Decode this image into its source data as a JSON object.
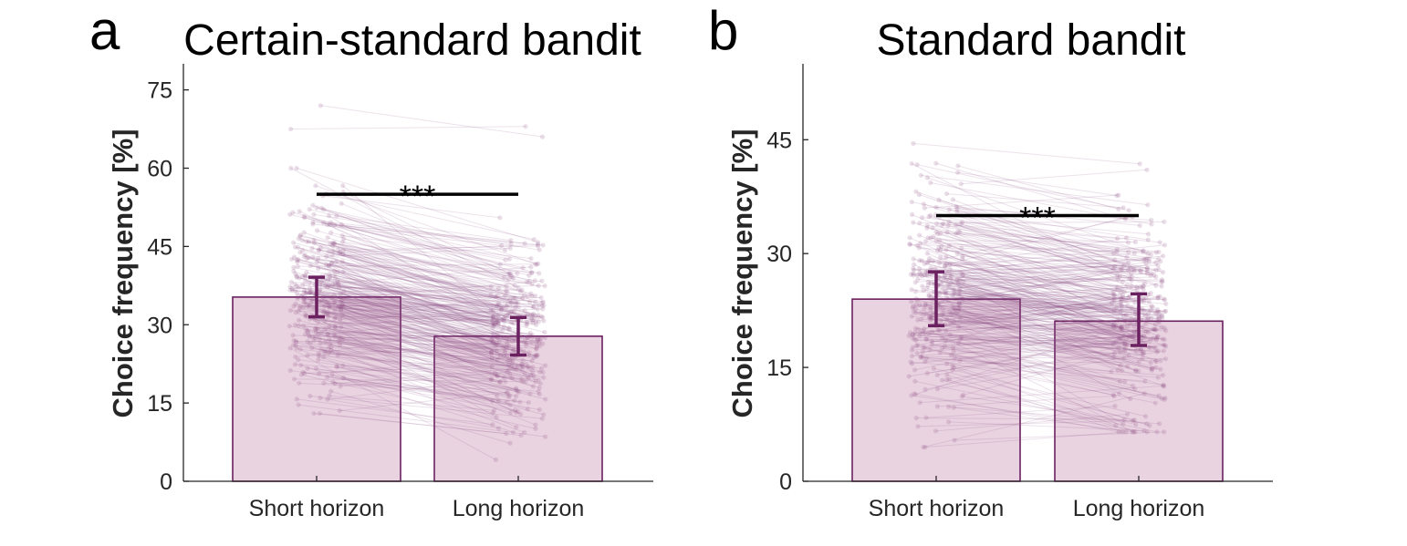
{
  "colors": {
    "bar_fill": "#e9d3e1",
    "bar_edge": "#6b2060",
    "line": "#8a4a80",
    "sig": "#000000",
    "axis": "#262626"
  },
  "panels": [
    {
      "letter": "a"
    },
    {
      "letter": "b"
    }
  ],
  "chart_data": [
    {
      "type": "bar",
      "title": "Certain-standard bandit",
      "ylabel": "Choice frequency [%]",
      "xlabel": "",
      "categories": [
        "Short horizon",
        "Long horizon"
      ],
      "values": [
        35.3,
        27.8
      ],
      "error": [
        [
          31.5,
          39.1
        ],
        [
          24.2,
          31.4
        ]
      ],
      "ylim": [
        0,
        80
      ],
      "yticks": [
        0,
        15,
        30,
        45,
        60,
        75
      ],
      "significance": {
        "label": "***",
        "y": 55
      },
      "individual_data": "hundreds of paired per-participant lines, short horizon about 14-72, long horizon about 4-68",
      "grid": false
    },
    {
      "type": "bar",
      "title": "Standard bandit",
      "ylabel": "Choice frequency [%]",
      "xlabel": "",
      "categories": [
        "Short horizon",
        "Long horizon"
      ],
      "values": [
        24.0,
        21.1
      ],
      "error": [
        [
          20.5,
          27.6
        ],
        [
          17.9,
          24.7
        ]
      ],
      "ylim": [
        0,
        55
      ],
      "yticks": [
        0,
        15,
        30,
        45
      ],
      "significance": {
        "label": "***",
        "y": 35
      },
      "individual_data": "hundreds of paired per-participant lines, short horizon about 4.5-44.5, long horizon about 6.5-44",
      "grid": false
    }
  ]
}
